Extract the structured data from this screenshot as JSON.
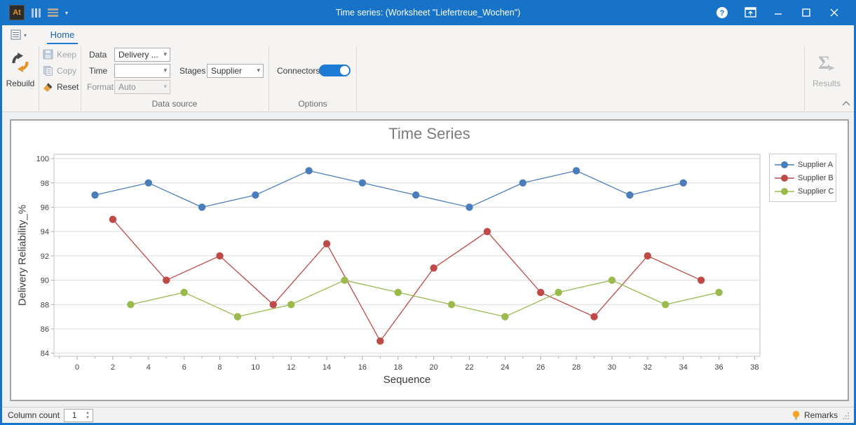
{
  "titlebar": {
    "title": "Time series:  (Worksheet \"Liefertreue_Wochen\")",
    "app_glyph": "At"
  },
  "ribbon": {
    "home_tab": "Home",
    "rebuild_label": "Rebuild",
    "keep_label": "Keep",
    "copy_label": "Copy",
    "reset_label": "Reset",
    "data_label": "Data",
    "data_value": "Delivery ...",
    "time_label": "Time",
    "time_value": "",
    "format_label": "Format",
    "format_value": "Auto",
    "stages_label": "Stages",
    "stages_value": "Supplier",
    "connectors_label": "Connectors",
    "connectors_on": true,
    "results_label": "Results",
    "group_data_source": "Data source",
    "group_options": "Options"
  },
  "statusbar": {
    "column_count_label": "Column count",
    "column_count_value": "1",
    "remarks_label": "Remarks"
  },
  "icons": {
    "combo_caret": "▾",
    "menu_caret": "▾",
    "spin_up": "▴",
    "spin_down": "▾",
    "results_sigma": "Σ"
  },
  "colors": {
    "titlebar_blue": "#1773c8",
    "accent_blue": "#1e7bd4",
    "series_a": "#4a7ebb",
    "series_b": "#be4b48",
    "series_c": "#9aba4e"
  },
  "chart_data": {
    "type": "line",
    "title": "Time Series",
    "xlabel": "Sequence",
    "ylabel": "Delivery Reliability_%",
    "xlim": [
      -1.3,
      38.3
    ],
    "ylim": [
      83.75,
      100.35
    ],
    "xticks": [
      0,
      2,
      4,
      6,
      8,
      10,
      12,
      14,
      16,
      18,
      20,
      22,
      24,
      26,
      28,
      30,
      32,
      34,
      36,
      38
    ],
    "x_minor_from": -1,
    "x_minor_to": 38,
    "yticks": [
      84,
      86,
      88,
      90,
      92,
      94,
      96,
      98,
      100
    ],
    "grid": "horizontal",
    "legend_position": "right",
    "series": [
      {
        "name": "Supplier A",
        "color": "#4a7ebb",
        "x": [
          1,
          4,
          7,
          10,
          13,
          16,
          19,
          22,
          25,
          28,
          31,
          34
        ],
        "y": [
          97,
          98,
          96,
          97,
          99,
          98,
          97,
          96,
          98,
          99,
          97,
          98
        ]
      },
      {
        "name": "Supplier B",
        "color": "#be4b48",
        "x": [
          2,
          5,
          8,
          11,
          14,
          17,
          20,
          23,
          26,
          29,
          32,
          35
        ],
        "y": [
          95,
          90,
          92,
          88,
          93,
          85,
          91,
          94,
          89,
          87,
          92,
          90
        ]
      },
      {
        "name": "Supplier C",
        "color": "#9aba4e",
        "x": [
          3,
          6,
          9,
          12,
          15,
          18,
          21,
          24,
          27,
          30,
          33,
          36
        ],
        "y": [
          88,
          89,
          87,
          88,
          90,
          89,
          88,
          87,
          89,
          90,
          88,
          89
        ]
      }
    ]
  }
}
